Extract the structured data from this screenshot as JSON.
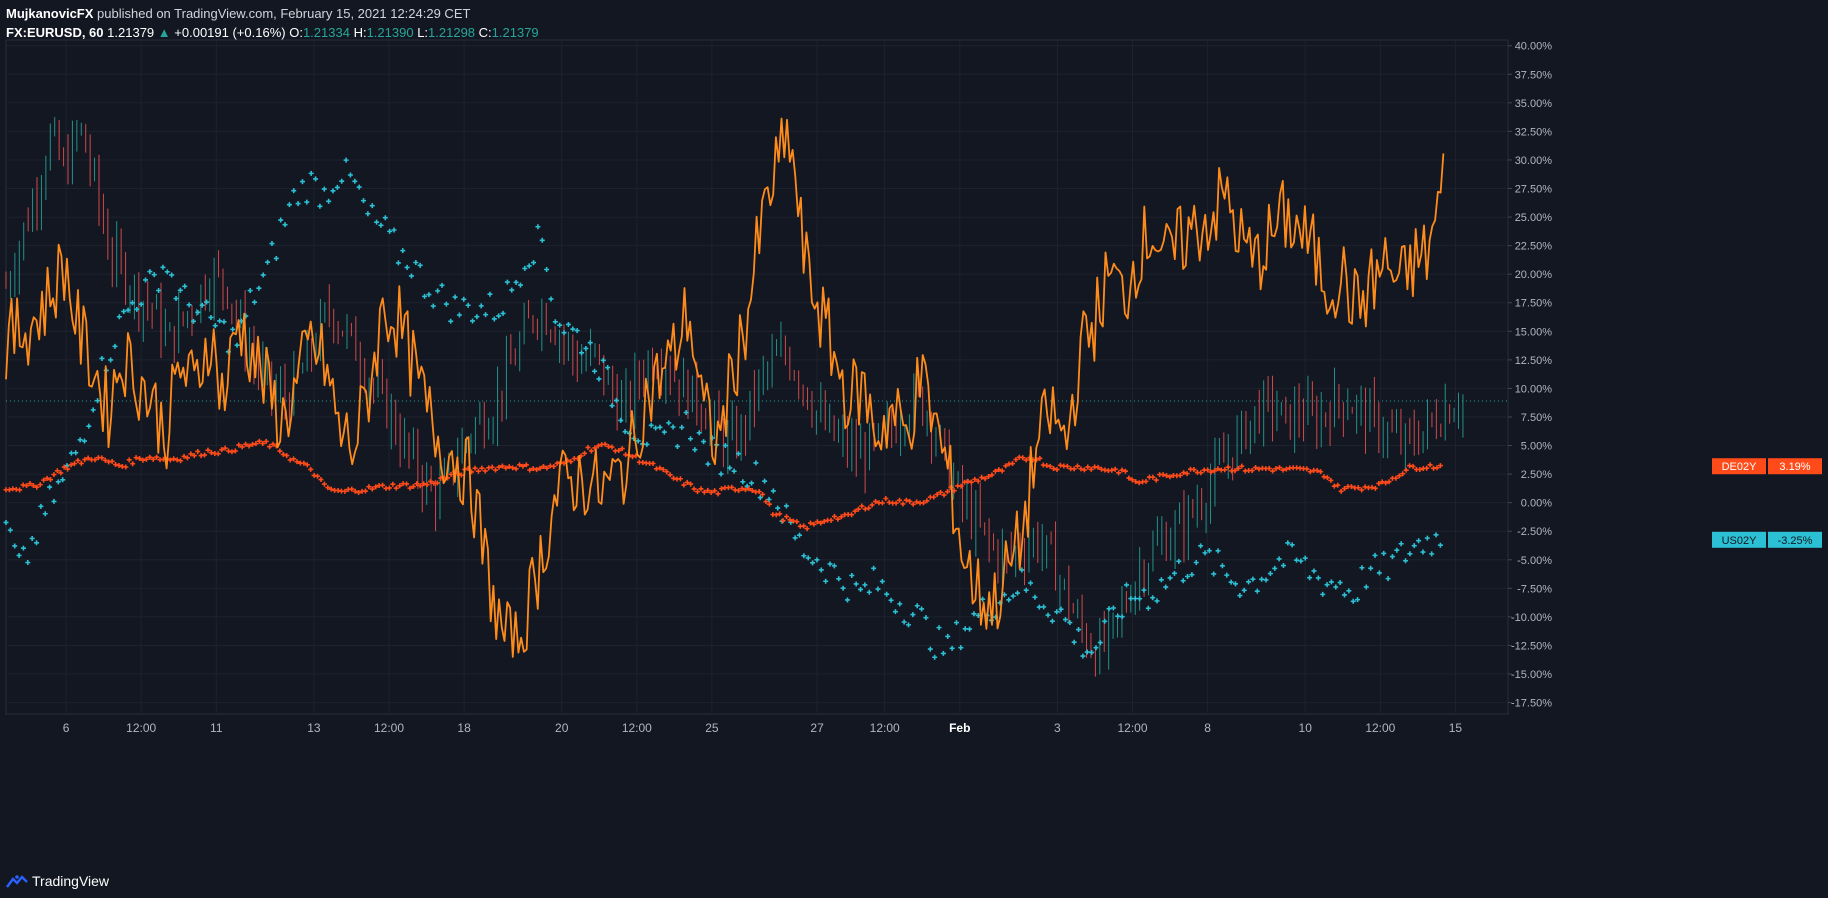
{
  "header": {
    "author": "MujkanovicFX",
    "published_text": "published on TradingView.com, February 15, 2021 12:24:29 CET",
    "symbol": "FX:EURUSD, 60",
    "last": "1.21379",
    "change_arrow": "▲",
    "change": "+0.00191 (+0.16%)",
    "o_label": "O:",
    "o": "1.21334",
    "h_label": "H:",
    "h": "1.21390",
    "l_label": "L:",
    "l": "1.21298",
    "c_label": "C:",
    "c": "1.21379"
  },
  "footer": {
    "brand": "TradingView",
    "logo_icon": "tradingview-logo-icon"
  },
  "colors": {
    "background": "#131722",
    "grid": "#1e222d",
    "orange_line": "#ff8c1a",
    "de02y": "#ff4a1a",
    "us02y": "#2bc0d4",
    "candle_up": "#26a69a",
    "candle_down": "#ef5350",
    "axis_text": "#b2b5be"
  },
  "chart_data": {
    "type": "line",
    "yaxis": {
      "ticks": [
        "40.00%",
        "37.50%",
        "35.00%",
        "32.50%",
        "30.00%",
        "27.50%",
        "25.00%",
        "22.50%",
        "20.00%",
        "17.50%",
        "15.00%",
        "12.50%",
        "10.00%",
        "7.50%",
        "5.00%",
        "2.50%",
        "0.00%",
        "-2.50%",
        "-5.00%",
        "-7.50%",
        "-10.00%",
        "-12.50%",
        "-15.00%",
        "-17.50%"
      ],
      "ylim": [
        -18.5,
        40.5
      ],
      "unit": "%"
    },
    "xaxis": {
      "ticks": [
        "6",
        "12:00",
        "11",
        "13",
        "12:00",
        "18",
        "20",
        "12:00",
        "25",
        "27",
        "12:00",
        "Feb",
        "3",
        "12:00",
        "8",
        "10",
        "12:00",
        "15"
      ],
      "bold": [
        "Feb"
      ],
      "index_range": [
        0,
        100
      ],
      "tick_index": [
        4,
        9,
        14,
        20.5,
        25.5,
        30.5,
        37,
        42,
        47,
        54,
        58.5,
        63.5,
        70,
        75,
        80,
        86.5,
        91.5,
        96.5
      ]
    },
    "grid": true,
    "price_line": 8.9,
    "series": [
      {
        "name": "EURUSD",
        "style": "candles",
        "values": [
          19,
          23,
          27,
          32,
          29,
          33,
          28,
          22,
          20,
          18,
          17,
          14,
          16,
          18,
          20,
          19,
          15,
          12,
          10,
          9,
          11,
          14,
          17,
          15,
          13,
          10,
          8,
          5,
          3,
          0.5,
          2,
          5,
          7,
          8,
          11,
          14,
          17,
          16,
          14,
          12,
          13,
          10,
          8,
          11,
          13,
          12,
          10,
          9,
          7,
          5,
          6,
          10,
          12,
          13,
          11,
          8,
          6,
          5,
          4,
          5,
          6,
          8,
          9,
          7,
          3,
          0,
          -2,
          -4,
          -5,
          -4,
          -3,
          -5,
          -8,
          -11,
          -13,
          -12,
          -9,
          -6,
          -4,
          -3,
          -2,
          0,
          2,
          4,
          6,
          8,
          8.5,
          7,
          8,
          7,
          8.5,
          9,
          8,
          7,
          6,
          5,
          6,
          7,
          8.5,
          9
        ]
      },
      {
        "name": "",
        "style": "line",
        "values": [
          14,
          15,
          16,
          18,
          21,
          15,
          12,
          8,
          13,
          11,
          9,
          6,
          12,
          10,
          15,
          9,
          16,
          13,
          10,
          7,
          10,
          14,
          12,
          6,
          5,
          10,
          17,
          16,
          12,
          8,
          5,
          4,
          2,
          -5,
          -11,
          -13,
          -9,
          -4,
          1,
          2,
          2,
          1,
          2,
          4,
          9,
          11,
          13,
          17,
          8,
          5,
          11,
          16,
          24,
          29,
          32,
          21,
          17,
          13,
          9,
          10,
          6,
          8,
          6,
          11,
          7,
          2,
          -5,
          -8,
          -9,
          -6,
          -3,
          5,
          8,
          5,
          13,
          16,
          20,
          18,
          22,
          24,
          21,
          23,
          24,
          25,
          27,
          23,
          21,
          23,
          25,
          24,
          22,
          19,
          20,
          17,
          19,
          21,
          19,
          21,
          22,
          28
        ]
      },
      {
        "name": "DE02Y",
        "label": "3.19%",
        "style": "markers",
        "values": [
          1.3,
          1.3,
          1.5,
          2.2,
          3.0,
          3.5,
          4.0,
          3.6,
          3.2,
          3.8,
          4.0,
          3.8,
          3.9,
          4.2,
          4.5,
          4.5,
          4.8,
          5.1,
          5.2,
          4.5,
          3.6,
          3.0,
          1.4,
          0.9,
          1.1,
          1.2,
          1.4,
          1.5,
          1.5,
          1.6,
          2.0,
          2.5,
          2.8,
          3.0,
          3.1,
          3.2,
          3.1,
          3.0,
          3.3,
          3.6,
          4.6,
          5.0,
          4.8,
          4.2,
          3.6,
          3.0,
          2.2,
          1.6,
          1.0,
          0.9,
          1.2,
          1.3,
          1.1,
          -1.0,
          -1.5,
          -2.2,
          -1.8,
          -1.3,
          -1.3,
          -0.5,
          0.0,
          0.2,
          0.0,
          0.1,
          0.4,
          1.0,
          1.6,
          2.0,
          2.4,
          3.0,
          3.8,
          4.0,
          3.2,
          3.1,
          3.1,
          3.1,
          2.9,
          2.8,
          1.7,
          2.1,
          2.3,
          2.6,
          2.8,
          2.9,
          3.0,
          3.0,
          2.9,
          3.0,
          2.9,
          2.9,
          2.8,
          2.5,
          1.2,
          1.3,
          1.4,
          1.6,
          2.4,
          3.1,
          3.19,
          3.19
        ]
      },
      {
        "name": "US02Y",
        "label": "-3.25%",
        "style": "markers",
        "values": [
          -2,
          -6,
          -3,
          0,
          2,
          5,
          9,
          13,
          16,
          18,
          19,
          21,
          18,
          17,
          16,
          15,
          14,
          18,
          20,
          24,
          27,
          28,
          27,
          29,
          28,
          25,
          24,
          22,
          21,
          19,
          18,
          17,
          17,
          17,
          17,
          19,
          22,
          23,
          16,
          15,
          14,
          12,
          9,
          7,
          6,
          5,
          6,
          7,
          5,
          4,
          4,
          3,
          2,
          1,
          -2,
          -4,
          -5,
          -6,
          -7,
          -8,
          -7,
          -8,
          -9,
          -10,
          -12,
          -13,
          -11,
          -10,
          -9,
          -8,
          -7,
          -8,
          -9,
          -10,
          -12,
          -13,
          -11,
          -9,
          -8,
          -8,
          -7,
          -6,
          -5,
          -5,
          -6,
          -7,
          -7,
          -6,
          -5,
          -5,
          -6,
          -7,
          -7,
          -8,
          -6,
          -6,
          -5,
          -4,
          -3.25,
          -3.25
        ]
      }
    ]
  }
}
